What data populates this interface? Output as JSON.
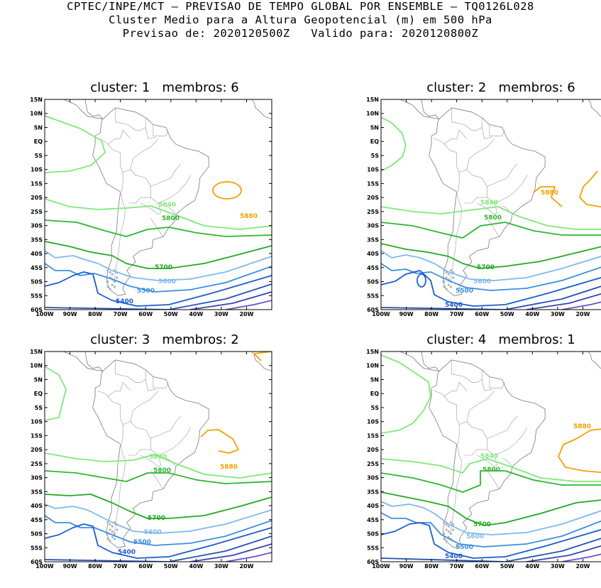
{
  "header": {
    "line1": "CPTEC/INPE/MCT — PREVISAO DE TEMPO GLOBAL POR ENSEMBLE — TQ0126L028",
    "line2": "Cluster Medio para a Altura Geopotencial (m) em 500 hPa",
    "line3": "Previsao de: 2020120500Z   Valido para: 2020120800Z"
  },
  "axes": {
    "lat_labels": [
      "15N",
      "10N",
      "5N",
      "EQ",
      "5S",
      "10S",
      "15S",
      "20S",
      "25S",
      "30S",
      "35S",
      "40S",
      "45S",
      "50S",
      "55S",
      "60S"
    ],
    "lon_labels": [
      "100W",
      "90W",
      "80W",
      "70W",
      "60W",
      "50W",
      "40W",
      "30W",
      "20W"
    ]
  },
  "colors": {
    "c5880": "#f5a000",
    "c5840": "#7de87a",
    "c5800": "#2fb52f",
    "c5700": "#22a822",
    "c5600": "#7fb8f0",
    "c5500": "#3c8ee0",
    "c5400": "#1a5ccf",
    "c5300": "#2450b8",
    "c5200": "#3a40b0",
    "c5100": "#6a50c8",
    "coast": "#7a7a7a"
  },
  "panels": [
    {
      "title": "cluster: 1   membros: 6"
    },
    {
      "title": "cluster: 2   membros: 6"
    },
    {
      "title": "cluster: 3   membros: 2"
    },
    {
      "title": "cluster: 4   membros: 1"
    }
  ],
  "contour_labels": {
    "l5880": "5880",
    "l5840": "5840",
    "l5800": "5800",
    "l5700": "5700",
    "l5600": "5600",
    "l5500": "5500",
    "l5400": "5400"
  }
}
